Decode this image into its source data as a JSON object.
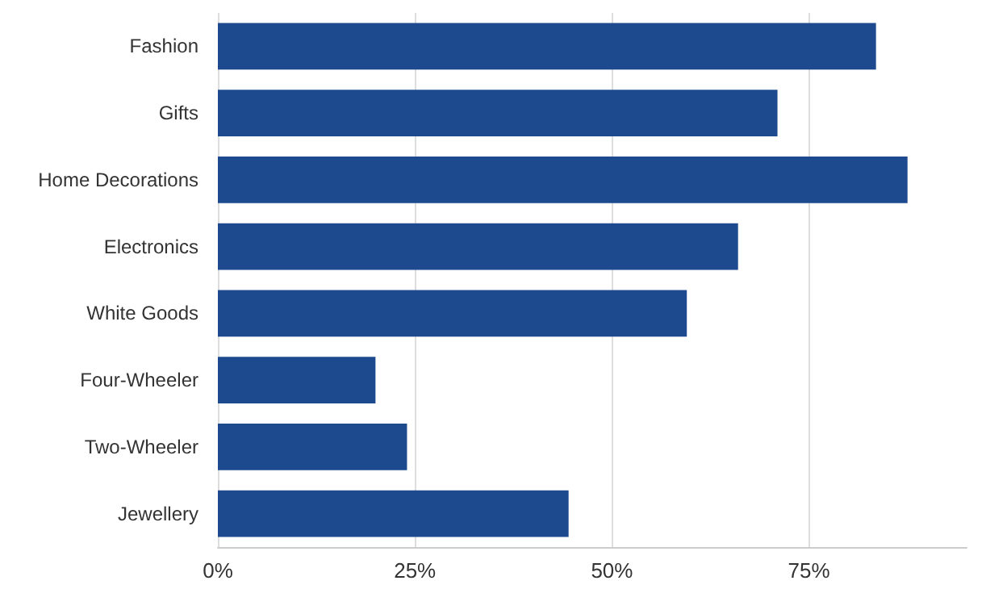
{
  "chart_data": {
    "type": "bar",
    "orientation": "horizontal",
    "categories": [
      "Fashion",
      "Gifts",
      "Home Decorations",
      "Electronics",
      "White Goods",
      "Four-Wheeler",
      "Two-Wheeler",
      "Jewellery"
    ],
    "values": [
      83.5,
      71,
      87.5,
      66,
      59.5,
      20,
      24,
      44.5
    ],
    "color": "#1d4a8e",
    "xlim": [
      0,
      95
    ],
    "xticks": [
      {
        "value": 0,
        "label": "0%"
      },
      {
        "value": 25,
        "label": "25%"
      },
      {
        "value": 50,
        "label": "50%"
      },
      {
        "value": 75,
        "label": "75%"
      }
    ],
    "grid": "x"
  }
}
